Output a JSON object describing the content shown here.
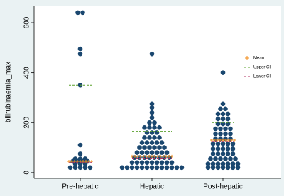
{
  "chart_data": {
    "type": "dot",
    "y_label": "bilirubinaemia_max",
    "categories": [
      "Pre-hepatic",
      "Hepatic",
      "Post-hepatic"
    ],
    "points_color": "#1a476f",
    "points": [
      [
        20,
        20,
        20,
        20,
        20,
        35,
        35,
        35,
        45,
        45,
        45,
        45,
        55,
        55,
        55,
        75,
        110,
        350,
        475,
        495,
        640,
        640
      ],
      [
        20,
        20,
        20,
        20,
        20,
        20,
        20,
        20,
        20,
        20,
        20,
        20,
        20,
        40,
        40,
        40,
        40,
        40,
        40,
        40,
        40,
        40,
        60,
        60,
        60,
        60,
        60,
        60,
        60,
        60,
        80,
        80,
        80,
        80,
        80,
        80,
        80,
        100,
        100,
        100,
        100,
        100,
        100,
        120,
        120,
        120,
        120,
        120,
        140,
        140,
        140,
        140,
        160,
        160,
        160,
        180,
        180,
        180,
        180,
        200,
        200,
        220,
        240,
        260,
        275,
        475
      ],
      [
        20,
        20,
        20,
        20,
        20,
        20,
        20,
        35,
        35,
        35,
        35,
        35,
        35,
        35,
        55,
        55,
        55,
        55,
        55,
        55,
        75,
        75,
        75,
        75,
        75,
        95,
        95,
        95,
        95,
        95,
        115,
        115,
        115,
        115,
        115,
        135,
        135,
        135,
        135,
        155,
        155,
        155,
        155,
        175,
        175,
        175,
        175,
        195,
        195,
        195,
        215,
        215,
        215,
        235,
        235,
        235,
        255,
        255,
        275,
        400
      ]
    ],
    "series": [
      {
        "name": "Mean",
        "color": "#f28e1c",
        "values": [
          45,
          65,
          130
        ]
      },
      {
        "name": "Upper CI",
        "color": "#5aa02c",
        "values": [
          350,
          165,
          200
        ]
      },
      {
        "name": "Lower CI",
        "color": "#b03060",
        "values": [
          40,
          55,
          125
        ]
      }
    ],
    "ylim": [
      -23,
      668
    ],
    "yticks": [
      0,
      200,
      400,
      600
    ]
  }
}
